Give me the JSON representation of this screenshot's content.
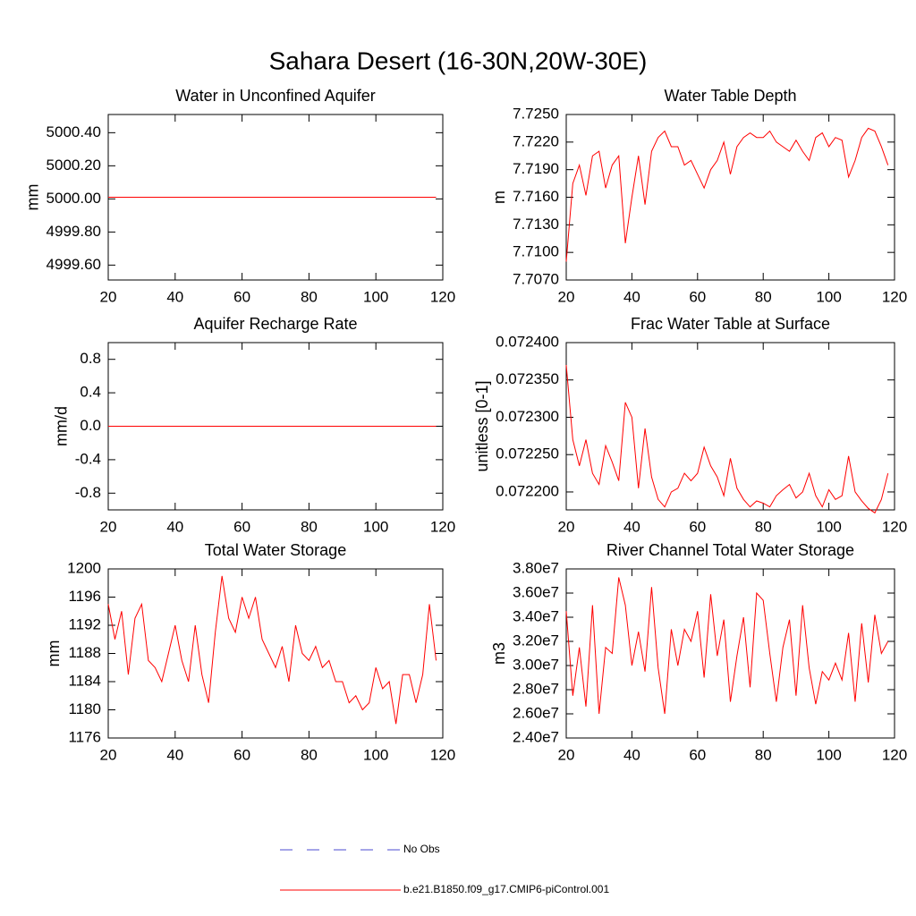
{
  "title": "Sahara Desert (16-30N,20W-30E)",
  "legend": [
    {
      "name": "No Obs",
      "color": "#4b4bd2",
      "dashed": true
    },
    {
      "name": "b.e21.B1850.f09_g17.CMIP6-piControl.001",
      "color": "#ff0000",
      "dashed": false
    }
  ],
  "chart_data": [
    {
      "type": "line",
      "title": "Water in Unconfined Aquifer",
      "y_label": "mm",
      "xlim": [
        20,
        120
      ],
      "xticks": [
        20,
        40,
        60,
        80,
        100,
        120
      ],
      "ylim": [
        4999.51,
        5000.51
      ],
      "yticks": [
        {
          "value": 4999.6,
          "label": "4999.60"
        },
        {
          "value": 4999.8,
          "label": "4999.80"
        },
        {
          "value": 5000.0,
          "label": "5000.00"
        },
        {
          "value": 5000.2,
          "label": "5000.20"
        },
        {
          "value": 5000.4,
          "label": "5000.40"
        }
      ],
      "x": [
        20,
        22,
        24,
        26,
        28,
        30,
        32,
        34,
        36,
        38,
        40,
        42,
        44,
        46,
        48,
        50,
        52,
        54,
        56,
        58,
        60,
        62,
        64,
        66,
        68,
        70,
        72,
        74,
        76,
        78,
        80,
        82,
        84,
        86,
        88,
        90,
        92,
        94,
        96,
        98,
        100,
        102,
        104,
        106,
        108,
        110,
        112,
        114,
        116,
        118
      ],
      "series": [
        {
          "color": "#ff0000",
          "values": [
            5000.01,
            5000.01,
            5000.01,
            5000.01,
            5000.01,
            5000.01,
            5000.01,
            5000.01,
            5000.01,
            5000.01,
            5000.01,
            5000.01,
            5000.01,
            5000.01,
            5000.01,
            5000.01,
            5000.01,
            5000.01,
            5000.01,
            5000.01,
            5000.01,
            5000.01,
            5000.01,
            5000.01,
            5000.01,
            5000.01,
            5000.01,
            5000.01,
            5000.01,
            5000.01,
            5000.01,
            5000.01,
            5000.01,
            5000.01,
            5000.01,
            5000.01,
            5000.01,
            5000.01,
            5000.01,
            5000.01,
            5000.01,
            5000.01,
            5000.01,
            5000.01,
            5000.01,
            5000.01,
            5000.01,
            5000.01,
            5000.01,
            5000.01
          ]
        }
      ]
    },
    {
      "type": "line",
      "title": "Water Table Depth",
      "y_label": "m",
      "xlim": [
        20,
        120
      ],
      "xticks": [
        20,
        40,
        60,
        80,
        100,
        120
      ],
      "ylim": [
        7.707,
        7.725
      ],
      "yticks": [
        {
          "value": 7.707,
          "label": "7.7070"
        },
        {
          "value": 7.71,
          "label": "7.7100"
        },
        {
          "value": 7.713,
          "label": "7.7130"
        },
        {
          "value": 7.716,
          "label": "7.7160"
        },
        {
          "value": 7.719,
          "label": "7.7190"
        },
        {
          "value": 7.722,
          "label": "7.7220"
        },
        {
          "value": 7.725,
          "label": "7.7250"
        }
      ],
      "x": [
        20,
        22,
        24,
        26,
        28,
        30,
        32,
        34,
        36,
        38,
        40,
        42,
        44,
        46,
        48,
        50,
        52,
        54,
        56,
        58,
        60,
        62,
        64,
        66,
        68,
        70,
        72,
        74,
        76,
        78,
        80,
        82,
        84,
        86,
        88,
        90,
        92,
        94,
        96,
        98,
        100,
        102,
        104,
        106,
        108,
        110,
        112,
        114,
        116,
        118
      ],
      "series": [
        {
          "color": "#ff0000",
          "values": [
            7.709,
            7.7175,
            7.7195,
            7.7162,
            7.7205,
            7.721,
            7.717,
            7.7195,
            7.7205,
            7.711,
            7.716,
            7.7205,
            7.7152,
            7.721,
            7.7225,
            7.7232,
            7.7215,
            7.7215,
            7.7195,
            7.72,
            7.7185,
            7.717,
            7.719,
            7.72,
            7.722,
            7.7185,
            7.7215,
            7.7225,
            7.723,
            7.7225,
            7.7225,
            7.7232,
            7.722,
            7.7215,
            7.721,
            7.7222,
            7.721,
            7.72,
            7.7225,
            7.723,
            7.7215,
            7.7225,
            7.7222,
            7.7182,
            7.72,
            7.7225,
            7.7235,
            7.7232,
            7.7215,
            7.7195
          ]
        }
      ]
    },
    {
      "type": "line",
      "title": "Aquifer Recharge Rate",
      "y_label": "mm/d",
      "xlim": [
        20,
        120
      ],
      "xticks": [
        20,
        40,
        60,
        80,
        100,
        120
      ],
      "ylim": [
        -1,
        1
      ],
      "yticks": [
        -0.8,
        -0.4,
        {
          "value": 0,
          "label": "0.0"
        },
        0.4,
        0.8
      ],
      "x": [
        20,
        22,
        24,
        26,
        28,
        30,
        32,
        34,
        36,
        38,
        40,
        42,
        44,
        46,
        48,
        50,
        52,
        54,
        56,
        58,
        60,
        62,
        64,
        66,
        68,
        70,
        72,
        74,
        76,
        78,
        80,
        82,
        84,
        86,
        88,
        90,
        92,
        94,
        96,
        98,
        100,
        102,
        104,
        106,
        108,
        110,
        112,
        114,
        116,
        118
      ],
      "series": [
        {
          "color": "#ff0000",
          "values": [
            0,
            0,
            0,
            0,
            0,
            0,
            0,
            0,
            0,
            0,
            0,
            0,
            0,
            0,
            0,
            0,
            0,
            0,
            0,
            0,
            0,
            0,
            0,
            0,
            0,
            0,
            0,
            0,
            0,
            0,
            0,
            0,
            0,
            0,
            0,
            0,
            0,
            0,
            0,
            0,
            0,
            0,
            0,
            0,
            0,
            0,
            0,
            0,
            0,
            0
          ]
        }
      ]
    },
    {
      "type": "line",
      "title": "Frac Water Table at Surface",
      "y_label": "unitless [0-1]",
      "xlim": [
        20,
        120
      ],
      "xticks": [
        20,
        40,
        60,
        80,
        100,
        120
      ],
      "ylim": [
        0.072176,
        0.0724
      ],
      "yticks": [
        {
          "value": 0.0722,
          "label": "0.072200"
        },
        {
          "value": 0.07225,
          "label": "0.072250"
        },
        {
          "value": 0.0723,
          "label": "0.072300"
        },
        {
          "value": 0.07235,
          "label": "0.072350"
        },
        {
          "value": 0.0724,
          "label": "0.072400"
        }
      ],
      "x": [
        20,
        22,
        24,
        26,
        28,
        30,
        32,
        34,
        36,
        38,
        40,
        42,
        44,
        46,
        48,
        50,
        52,
        54,
        56,
        58,
        60,
        62,
        64,
        66,
        68,
        70,
        72,
        74,
        76,
        78,
        80,
        82,
        84,
        86,
        88,
        90,
        92,
        94,
        96,
        98,
        100,
        102,
        104,
        106,
        108,
        110,
        112,
        114,
        116,
        118
      ],
      "series": [
        {
          "color": "#ff0000",
          "values": [
            0.07237,
            0.07227,
            0.072235,
            0.07227,
            0.072225,
            0.07221,
            0.072262,
            0.07224,
            0.072215,
            0.07232,
            0.0723,
            0.072205,
            0.072285,
            0.07222,
            0.07219,
            0.07218,
            0.0722,
            0.072205,
            0.072225,
            0.072215,
            0.072225,
            0.07226,
            0.072235,
            0.07222,
            0.072195,
            0.072245,
            0.072205,
            0.07219,
            0.07218,
            0.072188,
            0.072185,
            0.07218,
            0.072195,
            0.072203,
            0.07221,
            0.072192,
            0.0722,
            0.072225,
            0.072195,
            0.07218,
            0.072203,
            0.07219,
            0.072195,
            0.072248,
            0.0722,
            0.072188,
            0.072178,
            0.072172,
            0.07219,
            0.072225
          ]
        }
      ]
    },
    {
      "type": "line",
      "title": "Total Water Storage",
      "y_label": "mm",
      "xlim": [
        20,
        120
      ],
      "xticks": [
        20,
        40,
        60,
        80,
        100,
        120
      ],
      "ylim": [
        1176,
        1200
      ],
      "yticks": [
        1176,
        1180,
        1184,
        1188,
        1192,
        1196,
        1200
      ],
      "x": [
        20,
        22,
        24,
        26,
        28,
        30,
        32,
        34,
        36,
        38,
        40,
        42,
        44,
        46,
        48,
        50,
        52,
        54,
        56,
        58,
        60,
        62,
        64,
        66,
        68,
        70,
        72,
        74,
        76,
        78,
        80,
        82,
        84,
        86,
        88,
        90,
        92,
        94,
        96,
        98,
        100,
        102,
        104,
        106,
        108,
        110,
        112,
        114,
        116,
        118
      ],
      "series": [
        {
          "color": "#ff0000",
          "values": [
            1195,
            1190,
            1194,
            1185,
            1193,
            1195,
            1187,
            1186,
            1184,
            1188,
            1192,
            1187,
            1184,
            1192,
            1185,
            1181,
            1191,
            1199,
            1193,
            1191,
            1196,
            1193,
            1196,
            1190,
            1188,
            1186,
            1189,
            1184,
            1192,
            1188,
            1187,
            1189,
            1186,
            1187,
            1184,
            1184,
            1181,
            1182,
            1180,
            1181,
            1186,
            1183,
            1184,
            1178,
            1185,
            1185,
            1181,
            1185,
            1195,
            1187
          ]
        }
      ]
    },
    {
      "type": "line",
      "title": "River Channel Total Water Storage",
      "y_label": "m3",
      "xlim": [
        20,
        120
      ],
      "xticks": [
        20,
        40,
        60,
        80,
        100,
        120
      ],
      "ylim": [
        24000000,
        38000000
      ],
      "yticks": [
        {
          "value": 24000000,
          "label": "2.40e7"
        },
        {
          "value": 26000000,
          "label": "2.60e7"
        },
        {
          "value": 28000000,
          "label": "2.80e7"
        },
        {
          "value": 30000000,
          "label": "3.00e7"
        },
        {
          "value": 32000000,
          "label": "3.20e7"
        },
        {
          "value": 34000000,
          "label": "3.40e7"
        },
        {
          "value": 36000000,
          "label": "3.60e7"
        },
        {
          "value": 38000000,
          "label": "3.80e7"
        }
      ],
      "x": [
        20,
        22,
        24,
        26,
        28,
        30,
        32,
        34,
        36,
        38,
        40,
        42,
        44,
        46,
        48,
        50,
        52,
        54,
        56,
        58,
        60,
        62,
        64,
        66,
        68,
        70,
        72,
        74,
        76,
        78,
        80,
        82,
        84,
        86,
        88,
        90,
        92,
        94,
        96,
        98,
        100,
        102,
        104,
        106,
        108,
        110,
        112,
        114,
        116,
        118
      ],
      "series": [
        {
          "color": "#ff0000",
          "values": [
            34500000,
            27500000,
            31500000,
            26600000,
            35000000,
            26000000,
            31500000,
            31000000,
            37300000,
            35000000,
            30000000,
            32800000,
            29500000,
            36500000,
            29800000,
            26000000,
            33000000,
            30000000,
            33000000,
            32000000,
            34500000,
            29000000,
            35900000,
            30800000,
            33800000,
            27000000,
            30800000,
            34000000,
            28200000,
            36000000,
            35400000,
            31000000,
            27000000,
            31500000,
            33800000,
            27500000,
            35000000,
            29800000,
            26800000,
            29500000,
            28800000,
            30200000,
            28800000,
            32700000,
            27000000,
            33500000,
            28600000,
            34200000,
            31000000,
            32000000
          ]
        }
      ]
    }
  ]
}
